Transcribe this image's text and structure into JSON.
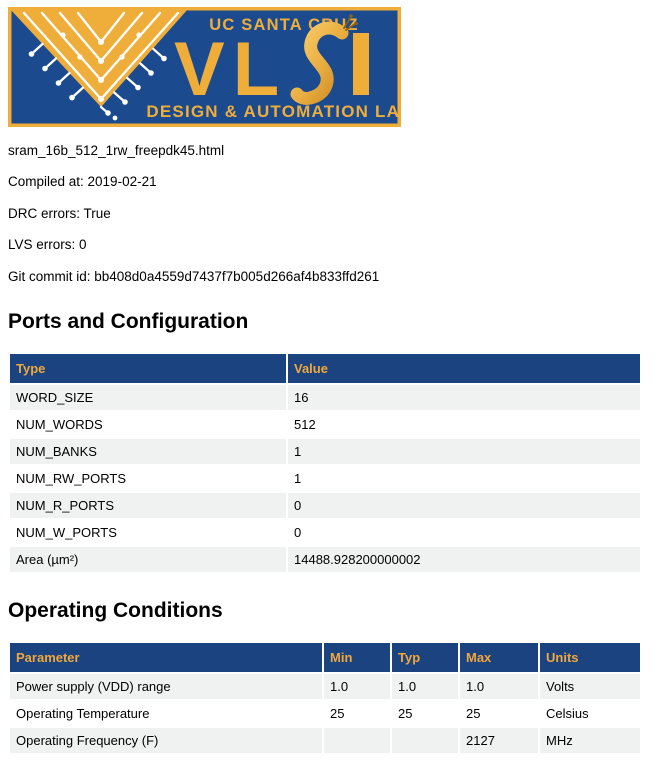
{
  "logo": {
    "school_line": "UC SANTA CRUZ",
    "vlsi_vl": "VL",
    "lab_line": "DESIGN & AUTOMATION LAB"
  },
  "meta": {
    "filename": "sram_16b_512_1rw_freepdk45.html",
    "compiled_at": "Compiled at: 2019-02-21",
    "drc_errors": "DRC errors: True",
    "lvs_errors": "LVS errors: 0",
    "git_commit": "Git commit id: bb408d0a4559d7437f7b005d266af4b833ffd261"
  },
  "ports": {
    "title": "Ports and Configuration",
    "columns": [
      "Type",
      "Value"
    ],
    "rows": [
      [
        "WORD_SIZE",
        "16"
      ],
      [
        "NUM_WORDS",
        "512"
      ],
      [
        "NUM_BANKS",
        "1"
      ],
      [
        "NUM_RW_PORTS",
        "1"
      ],
      [
        "NUM_R_PORTS",
        "0"
      ],
      [
        "NUM_W_PORTS",
        "0"
      ],
      [
        "Area (µm²)",
        "14488.928200000002"
      ]
    ]
  },
  "operating": {
    "title": "Operating Conditions",
    "columns": [
      "Parameter",
      "Min",
      "Typ",
      "Max",
      "Units"
    ],
    "rows": [
      [
        "Power supply (VDD) range",
        "1.0",
        "1.0",
        "1.0",
        "Volts"
      ],
      [
        "Operating Temperature",
        "25",
        "25",
        "25",
        "Celsius"
      ],
      [
        "Operating Frequency (F)",
        "",
        "",
        "2127",
        "MHz"
      ]
    ]
  },
  "colors": {
    "brand_blue": "#1C4A8E",
    "brand_gold": "#EFAE3A",
    "table_header_bg": "#1A4380",
    "table_header_text": "#F0A73B",
    "row_alt_bg": "#F0F1F1",
    "text": "#000000"
  }
}
